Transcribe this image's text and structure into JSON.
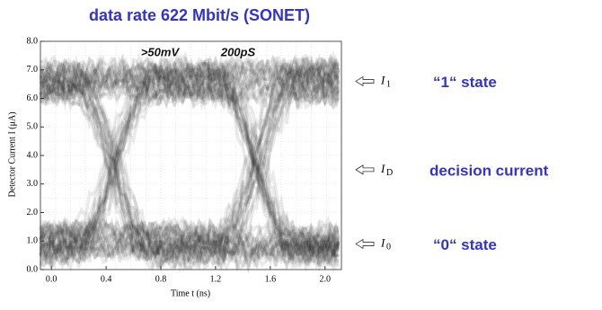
{
  "chart_data": {
    "type": "eye",
    "title": "data rate 622 Mbit/s (SONET)",
    "xlabel": "Time t (ns)",
    "ylabel": "Detector Current I (μA)",
    "scope_labels": [
      ">50mV",
      "200pS"
    ],
    "xlim": [
      -0.08,
      2.12
    ],
    "ylim": [
      0,
      8
    ],
    "xticks": [
      {
        "value": 0,
        "label": "0.0"
      },
      0.4,
      0.8,
      1.2,
      1.6,
      {
        "value": 2,
        "label": "2.0"
      }
    ],
    "yticks": [
      {
        "value": 0,
        "label": "0.0"
      },
      {
        "value": 1,
        "label": "1.0"
      },
      {
        "value": 2,
        "label": "2.0"
      },
      {
        "value": 3,
        "label": "3.0"
      },
      {
        "value": 4,
        "label": "4.0"
      },
      {
        "value": 5,
        "label": "5.0"
      },
      {
        "value": 6,
        "label": "6.0"
      },
      {
        "value": 7,
        "label": "7.0"
      },
      {
        "value": 8,
        "label": "8.0"
      }
    ],
    "grid": true,
    "crossings": [
      0.45,
      1.5
    ],
    "levels": [
      {
        "symbol": "I",
        "subscript": "1",
        "value": 6.6,
        "description": "“1“ state"
      },
      {
        "symbol": "I",
        "subscript": "D",
        "value": 3.5,
        "description": "decision current"
      },
      {
        "symbol": "I",
        "subscript": "0",
        "value": 0.9,
        "description": "“0“ state"
      }
    ]
  }
}
